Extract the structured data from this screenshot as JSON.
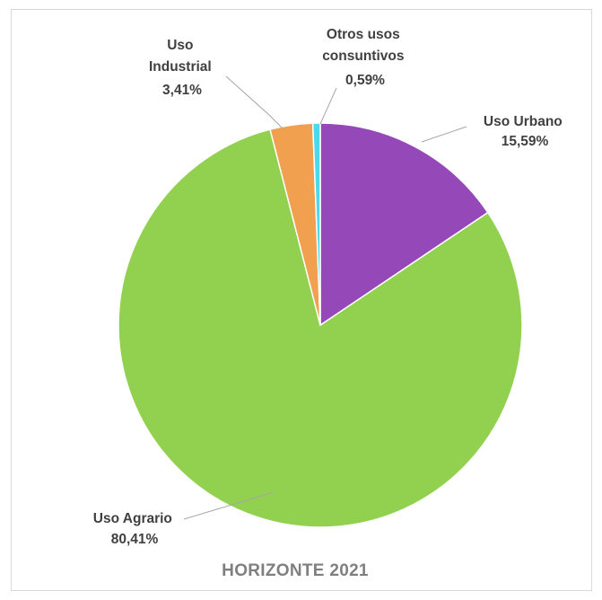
{
  "chart_data": {
    "type": "pie",
    "title": "HORIZONTE 2021",
    "slices": [
      {
        "label": "Uso Urbano",
        "value": 15.59,
        "display": "15,59%",
        "color": "#9548b8"
      },
      {
        "label": "Uso Agrario",
        "value": 80.41,
        "display": "80,41%",
        "color": "#92d050"
      },
      {
        "label": "Uso Industrial",
        "value": 3.41,
        "display": "3,41%",
        "color": "#f0a04e"
      },
      {
        "label": "Otros usos consuntivos",
        "value": 0.59,
        "display": "0,59%",
        "color": "#4dd8ee"
      }
    ],
    "start_angle": "12 o'clock",
    "direction": "clockwise",
    "legend": "none",
    "data_labels": "outside with leader lines"
  }
}
